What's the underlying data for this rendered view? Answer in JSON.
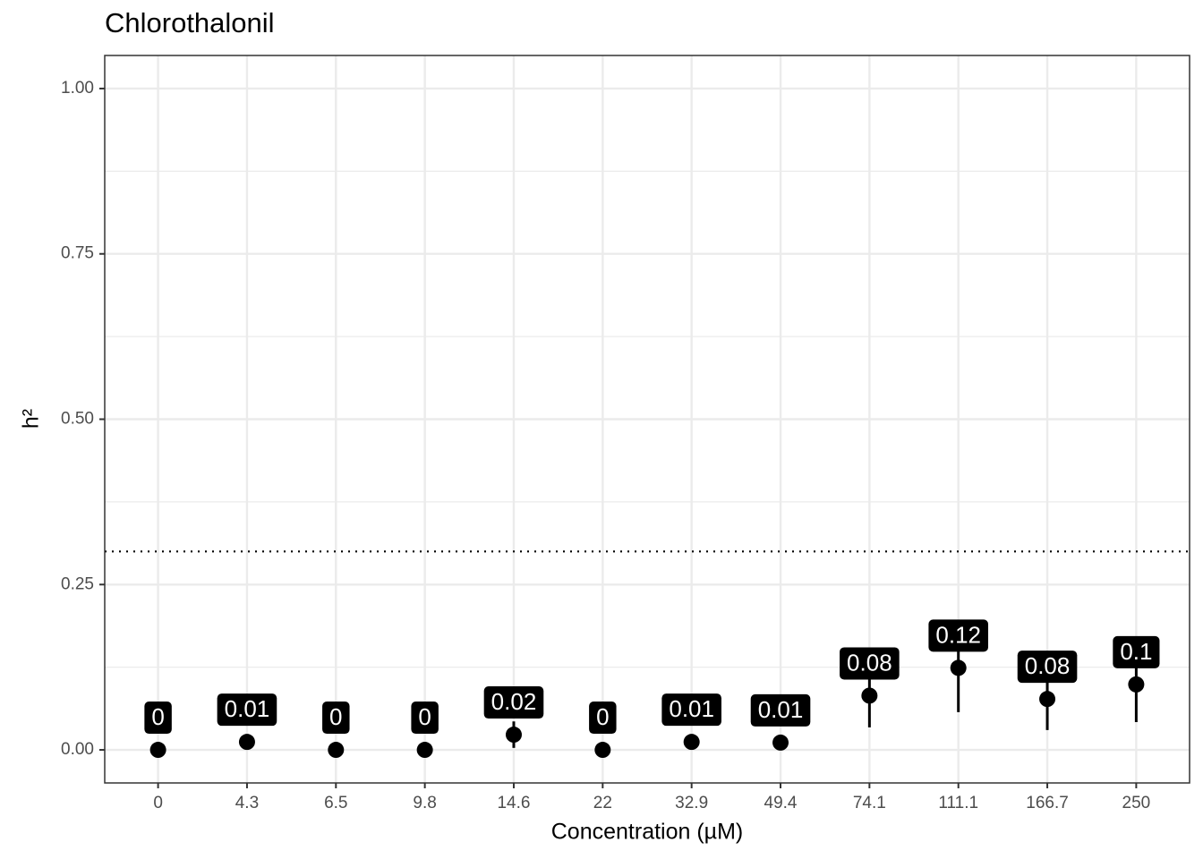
{
  "chart_data": {
    "type": "pointrange",
    "title": "Chlorothalonil",
    "x_label": "Concentration (µM)",
    "y_label": "h²",
    "categories": [
      "0",
      "4.3",
      "6.5",
      "9.8",
      "14.6",
      "22",
      "32.9",
      "49.4",
      "74.1",
      "111.1",
      "166.7",
      "250"
    ],
    "values": [
      0,
      0.012,
      0,
      0,
      0.023,
      0,
      0.012,
      0.011,
      0.082,
      0.124,
      0.077,
      0.099
    ],
    "value_labels": [
      "0",
      "0.01",
      "0",
      "0",
      "0.02",
      "0",
      "0.01",
      "0.01",
      "0.08",
      "0.12",
      "0.08",
      "0.1"
    ],
    "lower": [
      null,
      null,
      null,
      null,
      0.003,
      null,
      null,
      null,
      0.034,
      0.057,
      0.03,
      0.042
    ],
    "upper": [
      null,
      null,
      null,
      null,
      0.043,
      null,
      null,
      null,
      0.13,
      0.191,
      0.124,
      0.156
    ],
    "color": "#000000",
    "ylim": [
      -0.05,
      1.05
    ],
    "yticks": [
      {
        "value": 0,
        "label": "0.00"
      },
      {
        "value": 0.25,
        "label": "0.25"
      },
      {
        "value": 0.5,
        "label": "0.50"
      },
      {
        "value": 0.75,
        "label": "0.75"
      },
      {
        "value": 1,
        "label": "1.00"
      }
    ],
    "y_minor_grid": [
      0.125,
      0.375,
      0.625,
      0.875
    ],
    "hline": 0.3,
    "grid": true
  }
}
